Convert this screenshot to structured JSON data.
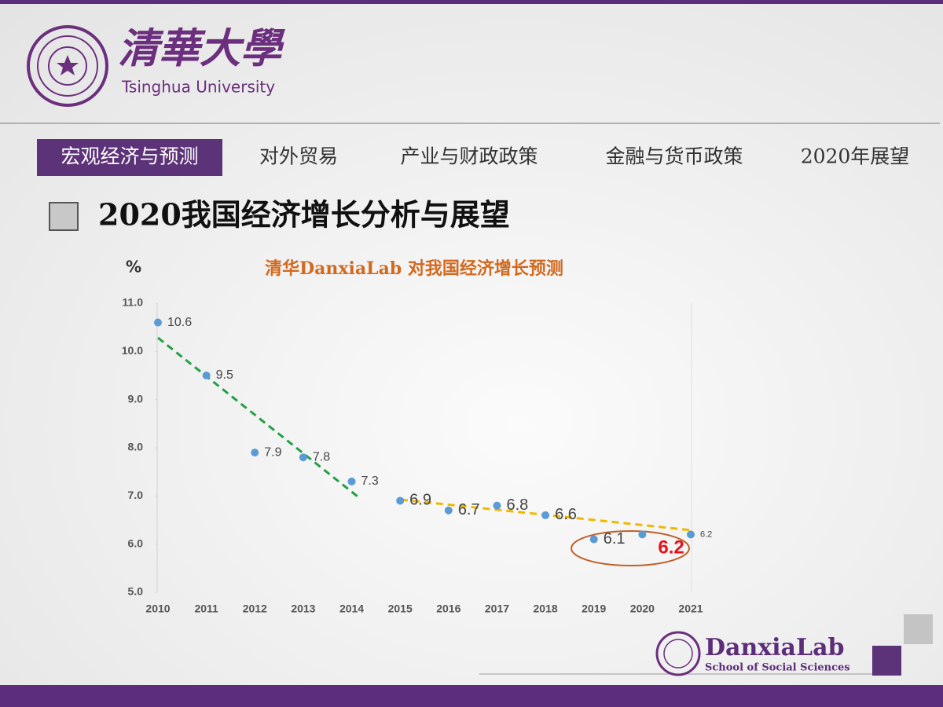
{
  "header": {
    "name_cn": "清華大學",
    "name_en": "Tsinghua University"
  },
  "tabs": [
    "宏观经济与预测",
    "对外贸易",
    "产业与财政政策",
    "金融与货币政策",
    "2020年展望"
  ],
  "section_title": "2020我国经济增长分析与展望",
  "chart_data": {
    "type": "line",
    "title": "清华DanxiaLab 对我国经济增长预测",
    "y_label": "%",
    "categories": [
      "2010",
      "2011",
      "2012",
      "2013",
      "2014",
      "2015",
      "2016",
      "2017",
      "2018",
      "2019",
      "2020",
      "2021"
    ],
    "values": [
      10.6,
      9.5,
      7.9,
      7.8,
      7.3,
      6.9,
      6.7,
      6.8,
      6.6,
      6.1,
      6.2,
      6.2
    ],
    "color": "#5b9bd5",
    "ylim": [
      5,
      11
    ],
    "yticks": [
      {
        "value": 5,
        "label": "5.0"
      },
      {
        "value": 6,
        "label": "6.0"
      },
      {
        "value": 7,
        "label": "7.0"
      },
      {
        "value": 8,
        "label": "8.0"
      },
      {
        "value": 9,
        "label": "9.0"
      },
      {
        "value": 10,
        "label": "10.0"
      },
      {
        "value": 11,
        "label": "11.0"
      }
    ]
  },
  "footer": {
    "lab": "DanxiaLab",
    "school": "School of Social Sciences"
  }
}
